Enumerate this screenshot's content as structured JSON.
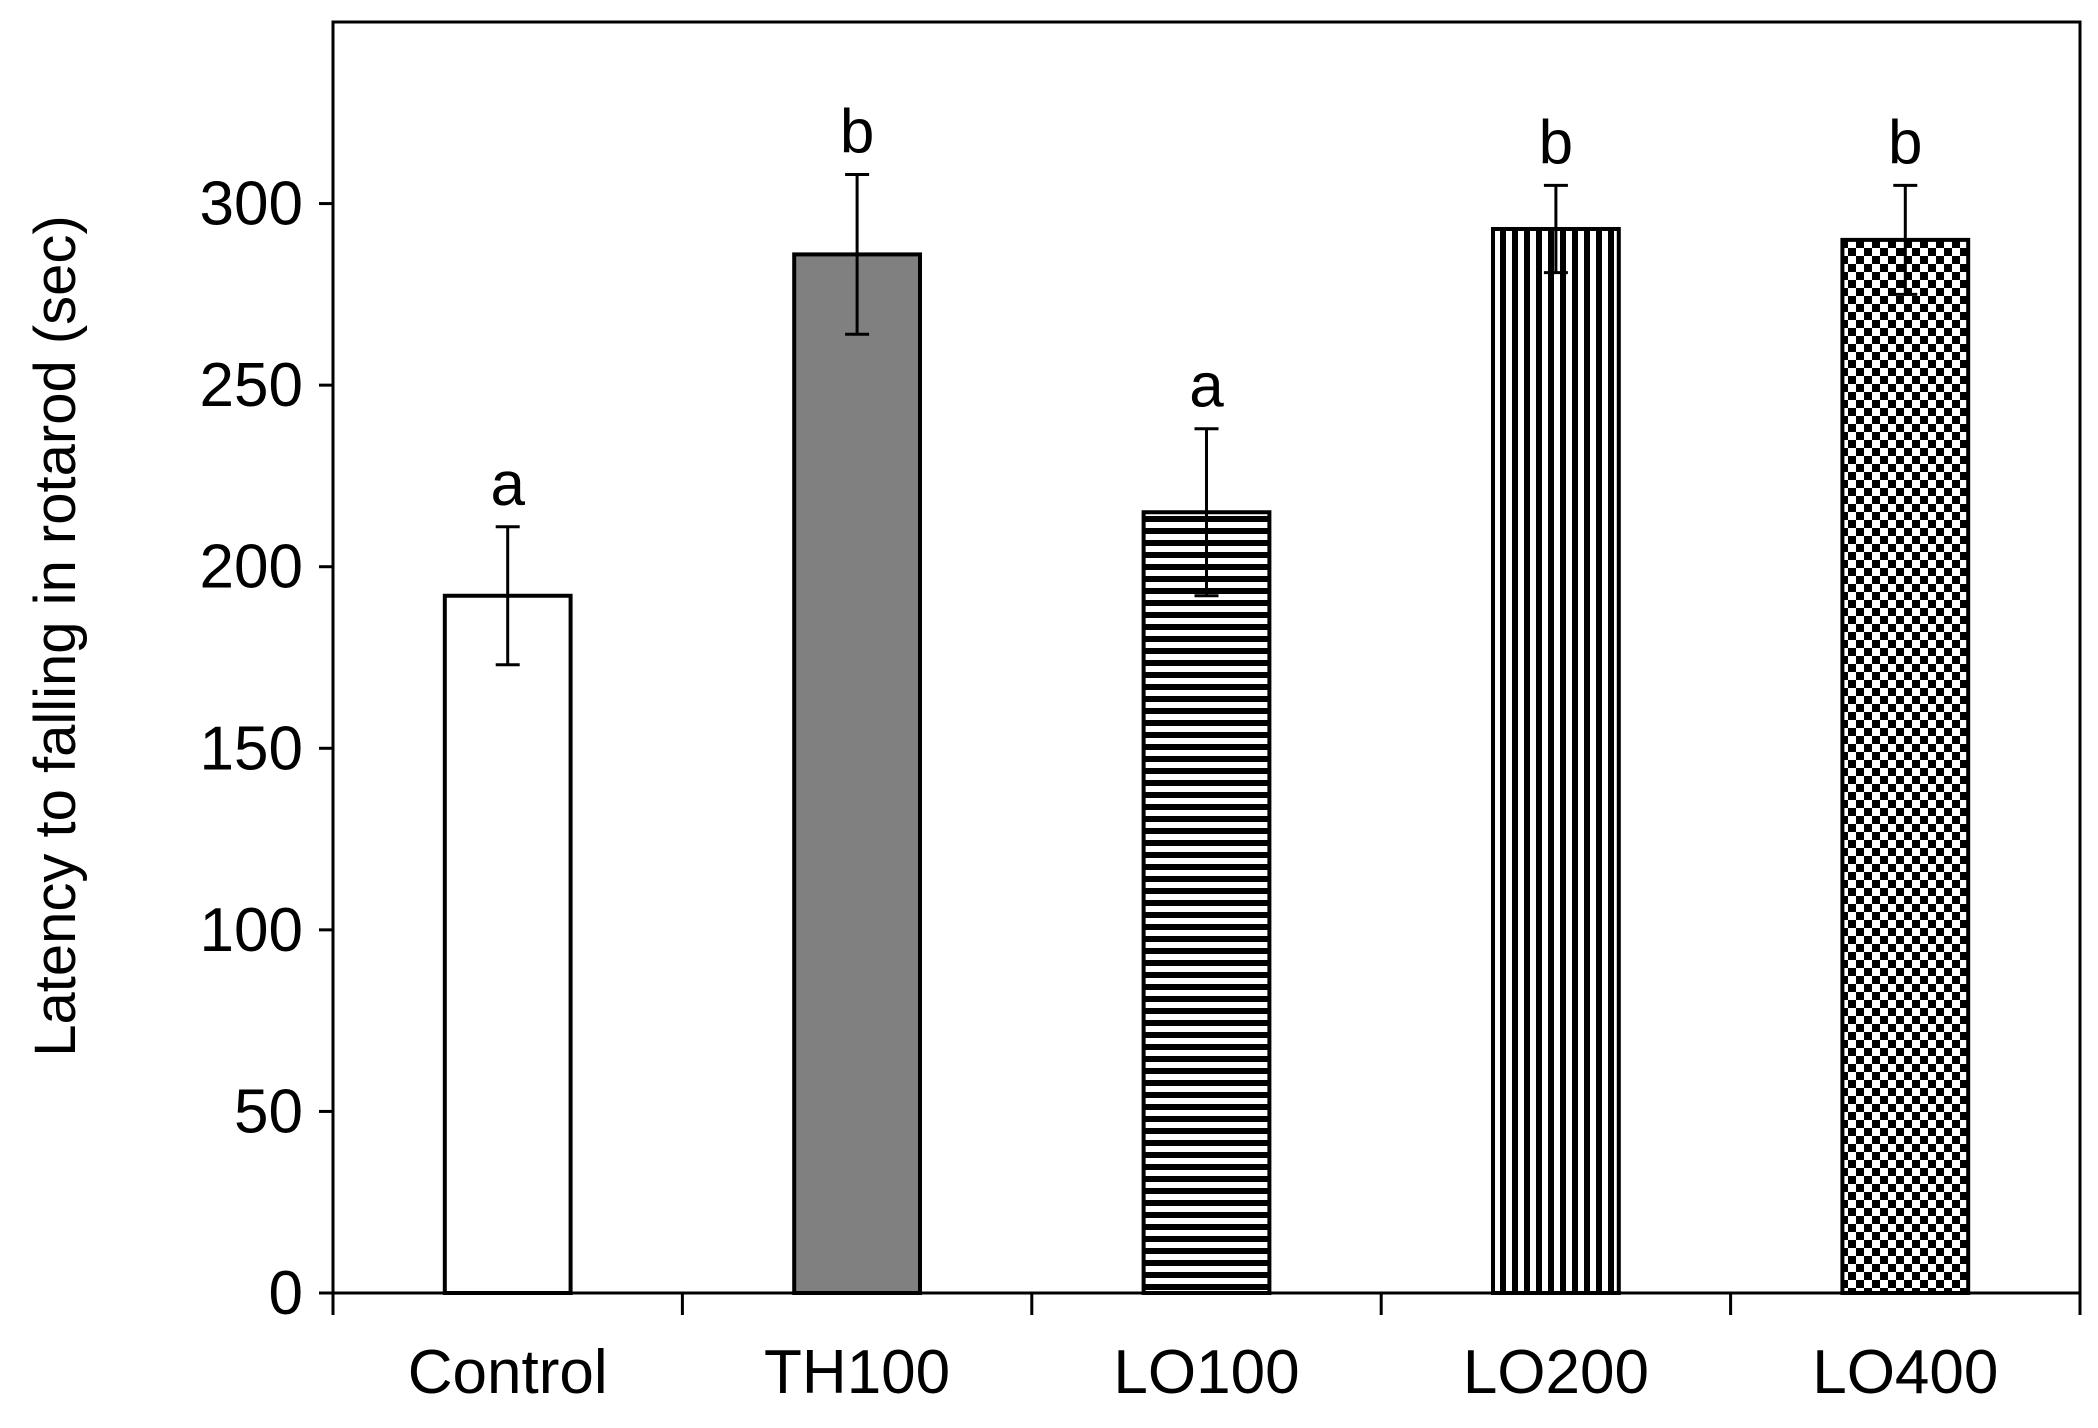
{
  "chart_data": {
    "type": "bar",
    "title": "",
    "xlabel": "",
    "ylabel": "Latency to falling in rotarod (sec)",
    "ylim": [
      0,
      350
    ],
    "yticks": [
      0,
      50,
      100,
      150,
      200,
      250,
      300
    ],
    "categories": [
      "Control",
      "TH100",
      "LO100",
      "LO200",
      "LO400"
    ],
    "values": [
      192,
      286,
      215,
      293,
      290
    ],
    "errors": [
      19,
      22,
      23,
      12,
      15
    ],
    "significance": [
      "a",
      "b",
      "a",
      "b",
      "b"
    ],
    "fills": [
      "white",
      "gray",
      "horizontal-lines",
      "vertical-lines",
      "checkerboard"
    ],
    "colors": {
      "gray_fill": "#808080",
      "ink": "#000000"
    },
    "grid": false
  }
}
